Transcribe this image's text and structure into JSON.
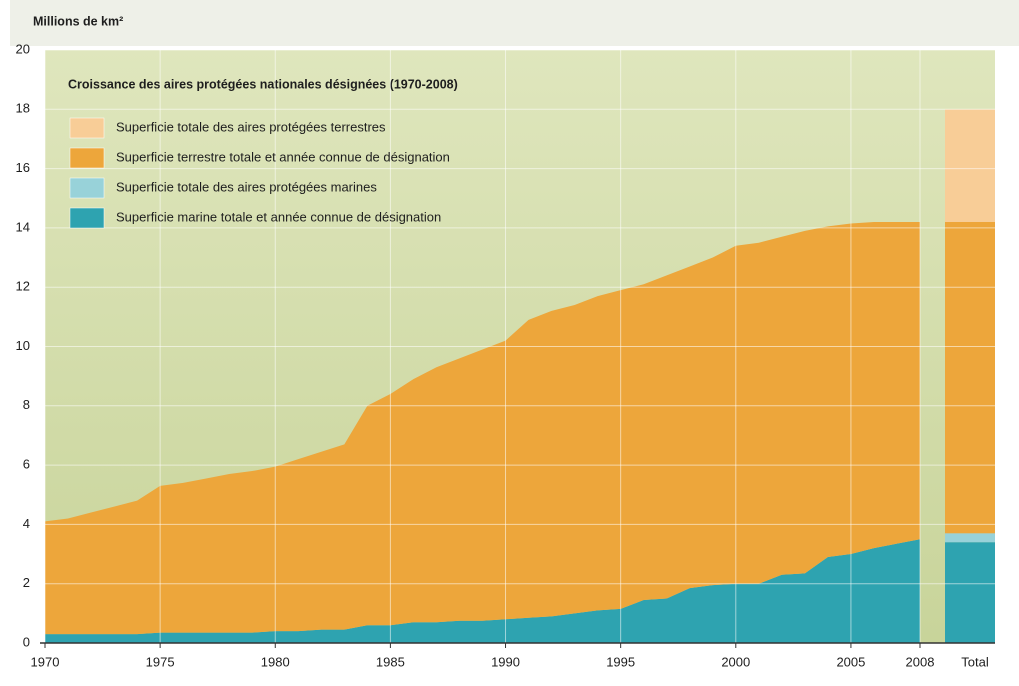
{
  "chart_data": {
    "type": "area",
    "y_label": "Millions de km²",
    "title": "Croissance des aires protégées nationales désignées (1970-2008)",
    "x": [
      1970,
      1971,
      1972,
      1973,
      1974,
      1975,
      1976,
      1977,
      1978,
      1979,
      1980,
      1981,
      1982,
      1983,
      1984,
      1985,
      1986,
      1987,
      1988,
      1989,
      1990,
      1991,
      1992,
      1993,
      1994,
      1995,
      1996,
      1997,
      1998,
      1999,
      2000,
      2001,
      2002,
      2003,
      2004,
      2005,
      2006,
      2007,
      2008
    ],
    "xlim": [
      1970,
      2008
    ],
    "xticks": [
      1970,
      1975,
      1980,
      1985,
      1990,
      1995,
      2000,
      2005,
      2008
    ],
    "ylim": [
      0,
      20
    ],
    "yticks": [
      0,
      2,
      4,
      6,
      8,
      10,
      12,
      14,
      16,
      18,
      20
    ],
    "grid": true,
    "total_label": "Total",
    "series": [
      {
        "name": "Superficie totale des aires protégées terrestres",
        "color": "#f8cd97",
        "total": 3.8
      },
      {
        "name": "Superficie terrestre totale et année connue de désignation",
        "color": "#eda63b",
        "values": [
          3.8,
          3.9,
          4.1,
          4.3,
          4.5,
          4.95,
          5.05,
          5.2,
          5.35,
          5.45,
          5.55,
          5.8,
          6.0,
          6.25,
          7.4,
          7.8,
          8.2,
          8.6,
          8.85,
          9.15,
          9.4,
          10.05,
          10.3,
          10.4,
          10.6,
          10.75,
          10.65,
          10.9,
          10.85,
          11.05,
          11.4,
          11.5,
          11.4,
          11.55,
          11.15,
          11.15,
          11.0,
          10.85,
          10.7
        ],
        "total": 10.5
      },
      {
        "name": "Superficie totale des aires protégées marines",
        "color": "#98d2d9",
        "total": 0.3
      },
      {
        "name": "Superficie marine totale et année connue de désignation",
        "color": "#2ea3b0",
        "values": [
          0.3,
          0.3,
          0.3,
          0.3,
          0.3,
          0.35,
          0.35,
          0.35,
          0.35,
          0.35,
          0.4,
          0.4,
          0.45,
          0.45,
          0.6,
          0.6,
          0.7,
          0.7,
          0.75,
          0.75,
          0.8,
          0.85,
          0.9,
          1.0,
          1.1,
          1.15,
          1.45,
          1.5,
          1.85,
          1.95,
          2.0,
          2.0,
          2.3,
          2.35,
          2.9,
          3.0,
          3.2,
          3.35,
          3.5
        ],
        "total": 3.4
      }
    ]
  }
}
